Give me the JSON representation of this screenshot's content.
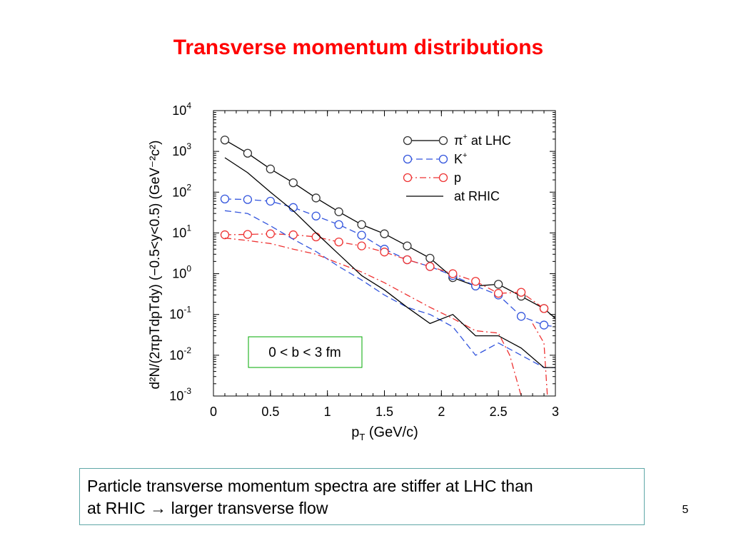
{
  "slide": {
    "title": "Transverse momentum distributions",
    "caption_line1": "Particle transverse momentum spectra are stiffer at LHC than",
    "caption_line2": "at RHIC → larger transverse flow",
    "page_number": "5"
  },
  "chart_data": {
    "type": "line",
    "title": "",
    "xlabel_main": "p",
    "xlabel_sub": "T",
    "xlabel_rest": " (GeV/c)",
    "ylabel": "d²N/(2πpTdpTdy) (−0.5<y<0.5) (GeV⁻²c²)",
    "xlim": [
      0,
      3
    ],
    "ylim": [
      0.001,
      10000
    ],
    "yscale": "log",
    "x_ticks": [
      "0",
      "0.5",
      "1",
      "1.5",
      "2",
      "2.5",
      "3"
    ],
    "x_tick_values": [
      0,
      0.5,
      1,
      1.5,
      2,
      2.5,
      3
    ],
    "y_tick_exponents": [
      4,
      3,
      2,
      1,
      0,
      -1,
      -2,
      -3
    ],
    "y_tick_labels": [
      "10^4",
      "10^3",
      "10^2",
      "10^1",
      "10^0",
      "10^-1",
      "10^-2",
      "10^-3"
    ],
    "annotation": "0 < b < 3 fm",
    "legend_position": "top-right",
    "series": [
      {
        "name": "π+ at LHC",
        "legend_main": "π",
        "legend_sup": "+",
        "legend_rest": " at LHC",
        "color": "#000000",
        "dash": "solid",
        "markers": true,
        "x": [
          0.1,
          0.3,
          0.5,
          0.7,
          0.9,
          1.1,
          1.3,
          1.5,
          1.7,
          1.9,
          2.1,
          2.3,
          2.5,
          2.7,
          2.9,
          3.0
        ],
        "y": [
          1900,
          900,
          370,
          170,
          72,
          33,
          16,
          9.5,
          4.8,
          2.4,
          0.8,
          0.5,
          0.55,
          0.28,
          0.14,
          0.08
        ]
      },
      {
        "name": "K+",
        "legend_main": "K",
        "legend_sup": "+",
        "legend_rest": "",
        "color": "#3355dd",
        "dash": "dashed",
        "markers": true,
        "x": [
          0.1,
          0.3,
          0.5,
          0.7,
          0.9,
          1.1,
          1.3,
          1.5,
          1.7,
          1.9,
          2.1,
          2.3,
          2.5,
          2.7,
          2.9,
          3.0
        ],
        "y": [
          68,
          66,
          60,
          42,
          26,
          16,
          8.8,
          4.0,
          2.2,
          1.5,
          0.9,
          0.5,
          0.3,
          0.09,
          0.055,
          0.05
        ]
      },
      {
        "name": "p",
        "legend_main": "p",
        "legend_sup": "",
        "legend_rest": "",
        "color": "#ee3333",
        "dash": "dashdot",
        "markers": true,
        "x": [
          0.1,
          0.3,
          0.5,
          0.7,
          0.9,
          1.1,
          1.3,
          1.5,
          1.7,
          1.9,
          2.1,
          2.3,
          2.5,
          2.7,
          2.9
        ],
        "y": [
          9.0,
          9.2,
          9.5,
          9.0,
          8.0,
          6.0,
          4.8,
          3.4,
          2.2,
          1.5,
          1.0,
          0.65,
          0.33,
          0.35,
          0.14
        ]
      },
      {
        "name": "K+ at RHIC",
        "legend": false,
        "color": "#3355dd",
        "dash": "dashed",
        "markers": false,
        "x": [
          0.1,
          0.3,
          0.5,
          0.7,
          0.9,
          1.1,
          1.3,
          1.5,
          1.7,
          1.9,
          2.1,
          2.3,
          2.5,
          2.7,
          2.9,
          3.0
        ],
        "y": [
          35,
          30,
          15,
          7,
          3.5,
          1.5,
          0.7,
          0.3,
          0.15,
          0.1,
          0.05,
          0.01,
          0.02,
          0.01,
          0.005,
          0.005
        ]
      },
      {
        "name": "p at RHIC",
        "legend": false,
        "color": "#ee3333",
        "dash": "dashdot",
        "markers": false,
        "x": [
          0.1,
          0.3,
          0.5,
          0.7,
          0.9,
          1.1,
          1.3,
          1.5,
          1.7,
          1.9,
          2.1,
          2.3,
          2.5,
          2.6,
          2.7
        ],
        "y": [
          7.5,
          6.5,
          5.5,
          4.0,
          3.0,
          1.8,
          1.1,
          0.6,
          0.3,
          0.15,
          0.08,
          0.04,
          0.035,
          0.01,
          0.001
        ]
      },
      {
        "name": "p at RHIC (tail)",
        "legend": false,
        "color": "#ee3333",
        "dash": "dashdot",
        "markers": false,
        "x": [
          2.8,
          2.9,
          2.93
        ],
        "y": [
          0.06,
          0.02,
          0.001
        ]
      },
      {
        "name": "at RHIC",
        "legend_main": "",
        "legend_sup": "",
        "legend_rest": "at RHIC",
        "color": "#000000",
        "dash": "solid",
        "markers": false,
        "x": [
          0.1,
          0.3,
          0.5,
          0.7,
          0.9,
          1.1,
          1.3,
          1.5,
          1.7,
          1.9,
          2.1,
          2.3,
          2.5,
          2.7,
          2.9,
          3.0
        ],
        "y": [
          700,
          300,
          100,
          35,
          10,
          3,
          0.9,
          0.4,
          0.15,
          0.06,
          0.1,
          0.03,
          0.03,
          0.015,
          0.005,
          0.005
        ]
      }
    ]
  }
}
